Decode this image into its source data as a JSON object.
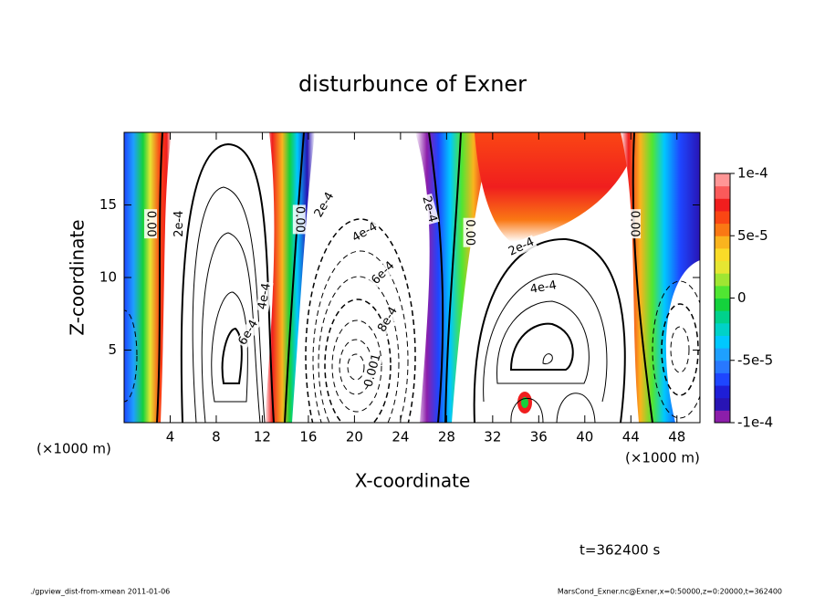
{
  "chart_data": {
    "type": "contour",
    "title": "disturbunce of Exner",
    "xlabel": "X-coordinate",
    "ylabel": "Z-coordinate",
    "x_unit_left": "(×1000 m)",
    "x_unit_right": "(×1000 m)",
    "xlim": [
      0,
      50
    ],
    "ylim": [
      0,
      20
    ],
    "xticks": [
      4,
      8,
      12,
      16,
      20,
      24,
      28,
      32,
      36,
      40,
      44,
      48
    ],
    "yticks": [
      5,
      10,
      15
    ],
    "colorbar": {
      "lim": [
        -0.0001,
        0.0001
      ],
      "ticks": [
        {
          "value": 0.0001,
          "label": "1e-4"
        },
        {
          "value": 5e-05,
          "label": "5e-5"
        },
        0,
        {
          "value": -5e-05,
          "label": "-5e-5"
        },
        {
          "value": -0.0001,
          "label": "-1e-4"
        }
      ],
      "colors": [
        "#8c1eaa",
        "#2814b4",
        "#1e1ed7",
        "#1e46ff",
        "#2878ff",
        "#1ea0ff",
        "#00c8ff",
        "#00d2c8",
        "#00d28c",
        "#14d23c",
        "#50e632",
        "#a0e632",
        "#e6e632",
        "#fadc28",
        "#fab41e",
        "#fa7814",
        "#fa4614",
        "#f01e1e",
        "#fa5a5a",
        "#ff9696"
      ]
    },
    "contour_labels": [
      {
        "label": "0.00",
        "x": 2.3,
        "y": 13.7
      },
      {
        "label": "2e-4",
        "x": 4.8,
        "y": 13.7
      },
      {
        "label": "0.00",
        "x": 15.2,
        "y": 14.0
      },
      {
        "label": "2e-4",
        "x": 17.4,
        "y": 15.0
      },
      {
        "label": "4e-4",
        "x": 20.9,
        "y": 13.1
      },
      {
        "label": "6e-4",
        "x": 22.5,
        "y": 10.3
      },
      {
        "label": "8e-4",
        "x": 22.9,
        "y": 7.1
      },
      {
        "label": "0.001",
        "x": 21.6,
        "y": 3.6
      },
      {
        "label": "2e-4",
        "x": 26.5,
        "y": 14.7
      },
      {
        "label": "0.00",
        "x": 30.0,
        "y": 13.1
      },
      {
        "label": "2e-4",
        "x": 34.5,
        "y": 12.1
      },
      {
        "label": "4e-4",
        "x": 36.4,
        "y": 9.3
      },
      {
        "label": "4e-4",
        "x": 12.2,
        "y": 8.7
      },
      {
        "label": "6e-4",
        "x": 10.8,
        "y": 6.2
      },
      {
        "label": "0.00",
        "x": 44.3,
        "y": 13.7
      }
    ],
    "time_label": "t=362400 s",
    "footer_left": "./gpview_dist-from-xmean  2011-01-06",
    "footer_right": "MarsCond_Exner.nc@Exner,x=0:50000,z=0:20000,t=362400"
  }
}
